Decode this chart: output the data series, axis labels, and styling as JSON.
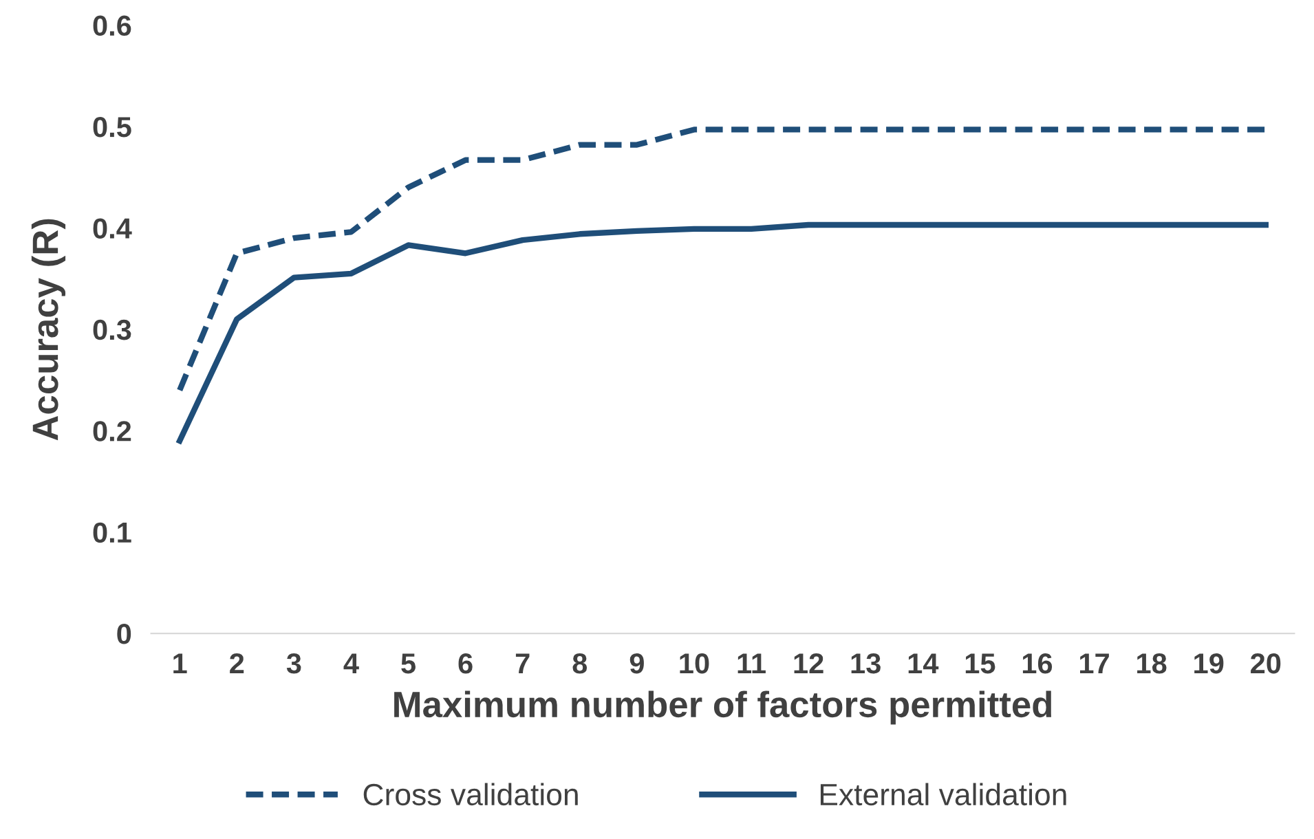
{
  "chart_data": {
    "type": "line",
    "xlabel": "Maximum number of factors permitted",
    "ylabel": "Accuracy (R)",
    "categories": [
      "1",
      "2",
      "3",
      "4",
      "5",
      "6",
      "7",
      "8",
      "9",
      "10",
      "11",
      "12",
      "13",
      "14",
      "15",
      "16",
      "17",
      "18",
      "19",
      "20"
    ],
    "series": [
      {
        "name": "Cross validation",
        "color": "#1f4e79",
        "line_style": "dashed",
        "values": [
          0.24,
          0.375,
          0.39,
          0.396,
          0.44,
          0.467,
          0.467,
          0.482,
          0.482,
          0.497,
          0.497,
          0.497,
          0.497,
          0.497,
          0.497,
          0.497,
          0.497,
          0.497,
          0.497,
          0.497
        ]
      },
      {
        "name": "External validation",
        "color": "#1f4e79",
        "line_style": "solid",
        "values": [
          0.19,
          0.31,
          0.351,
          0.355,
          0.383,
          0.375,
          0.388,
          0.394,
          0.397,
          0.399,
          0.399,
          0.403,
          0.403,
          0.403,
          0.403,
          0.403,
          0.403,
          0.403,
          0.403,
          0.403
        ]
      }
    ],
    "ylim": [
      0,
      0.6
    ],
    "yticks": [
      0,
      0.1,
      0.2,
      0.3,
      0.4,
      0.5,
      0.6
    ],
    "grid": false,
    "legend": "bottom",
    "marker": "none"
  }
}
